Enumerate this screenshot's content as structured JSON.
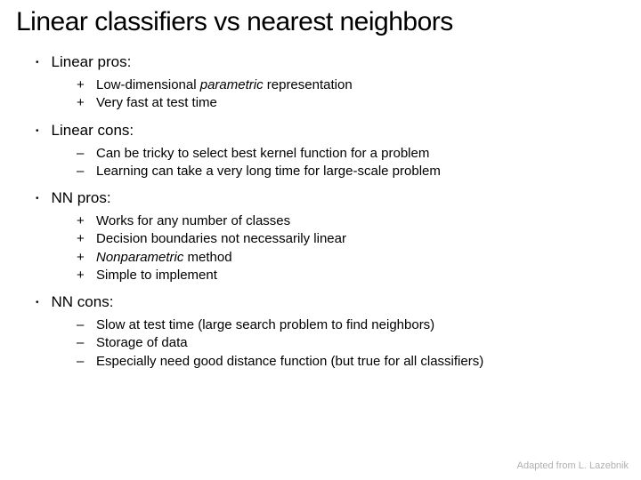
{
  "title": "Linear classifiers vs nearest neighbors",
  "sections": [
    {
      "header": "Linear pros:",
      "marker": "+",
      "items": [
        {
          "pre": "Low-dimensional ",
          "italic": "parametric",
          "post": " representation"
        },
        {
          "pre": "Very fast at test time",
          "italic": "",
          "post": ""
        }
      ]
    },
    {
      "header": "Linear cons:",
      "marker": "–",
      "items": [
        {
          "pre": "Can be tricky to select best kernel function for a problem",
          "italic": "",
          "post": ""
        },
        {
          "pre": "Learning can take a very long time for large-scale problem",
          "italic": "",
          "post": ""
        }
      ]
    },
    {
      "header": "NN pros:",
      "marker": "+",
      "items": [
        {
          "pre": "Works for any number of classes",
          "italic": "",
          "post": ""
        },
        {
          "pre": "Decision boundaries not necessarily linear",
          "italic": "",
          "post": ""
        },
        {
          "pre": "",
          "italic": "Nonparametric",
          "post": " method"
        },
        {
          "pre": "Simple to implement",
          "italic": "",
          "post": ""
        }
      ]
    },
    {
      "header": "NN cons:",
      "marker": "–",
      "items": [
        {
          "pre": "Slow at test time (large search problem to find neighbors)",
          "italic": "",
          "post": ""
        },
        {
          "pre": "Storage of data",
          "italic": "",
          "post": ""
        },
        {
          "pre": "Especially need good distance function (but true for all classifiers)",
          "italic": "",
          "post": ""
        }
      ]
    }
  ],
  "attribution": "Adapted from L. Lazebnik",
  "colors": {
    "background": "#ffffff",
    "text": "#000000",
    "attribution": "#b0b0b0"
  },
  "fonts": {
    "title_size": 30,
    "header_size": 17,
    "item_size": 15,
    "attribution_size": 11
  }
}
